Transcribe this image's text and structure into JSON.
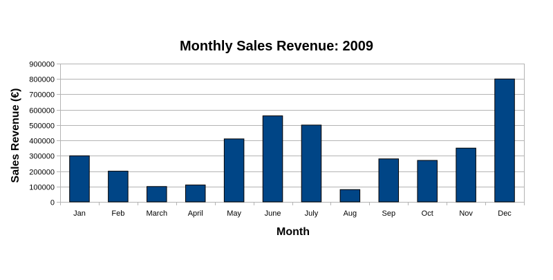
{
  "chart_data": {
    "type": "bar",
    "title": "Monthly Sales Revenue: 2009",
    "xlabel": "Month",
    "ylabel": "Sales Revenue (€)",
    "categories": [
      "Jan",
      "Feb",
      "March",
      "April",
      "May",
      "June",
      "July",
      "Aug",
      "Sep",
      "Oct",
      "Nov",
      "Dec"
    ],
    "values": [
      300000,
      200000,
      100000,
      110000,
      410000,
      560000,
      500000,
      80000,
      280000,
      270000,
      350000,
      800000
    ],
    "ylim": [
      0,
      900000
    ],
    "yticks": [
      "0",
      "100000",
      "200000",
      "300000",
      "400000",
      "500000",
      "600000",
      "700000",
      "800000",
      "900000"
    ],
    "grid": true,
    "legend": "none",
    "bar_color": "#004586",
    "grid_color": "#b3b3b3"
  }
}
